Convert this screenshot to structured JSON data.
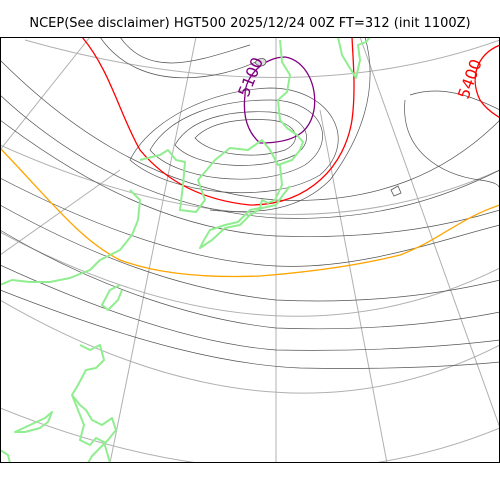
{
  "header": {
    "title": "NCEP(See disclaimer) HGT500 2025/12/24 00Z FT=312 (init 1100Z)"
  },
  "map": {
    "contour_labels": {
      "purple": "5100",
      "red": "5400"
    },
    "colors": {
      "background": "#ffffff",
      "frame": "#000000",
      "graticule": "#b0b0b0",
      "coastline": "#90ee90",
      "thin_contour": "#555555",
      "contour_5100": "#800080",
      "contour_5400": "#ff0000",
      "contour_5700": "#ffa500"
    }
  }
}
